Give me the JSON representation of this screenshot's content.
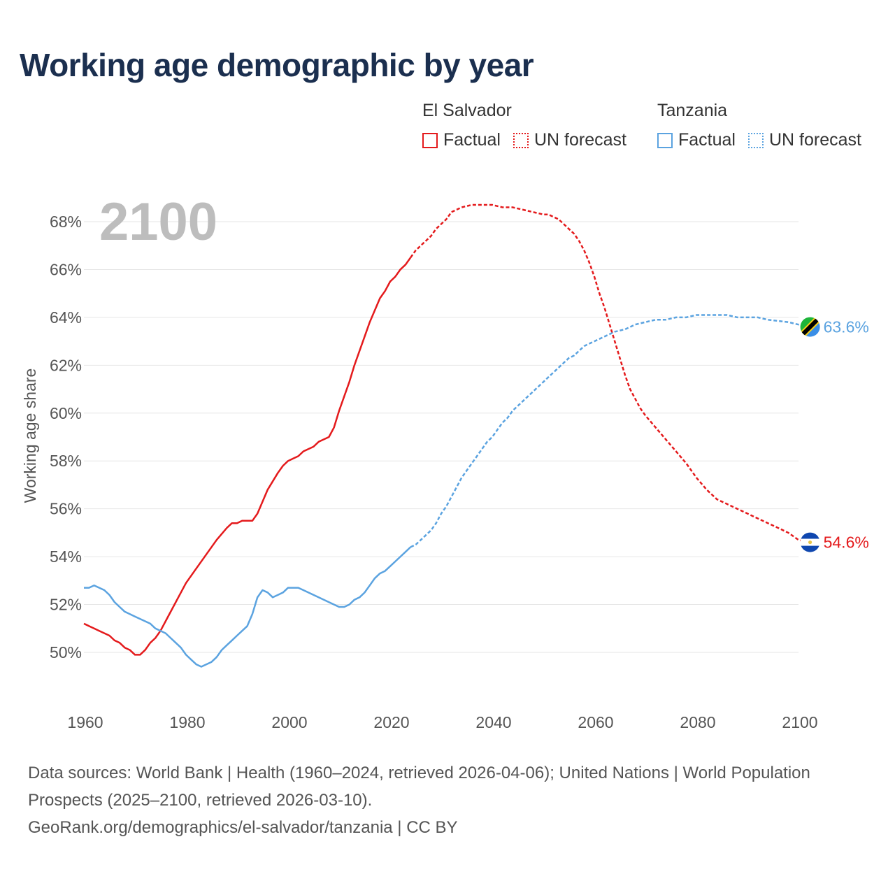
{
  "title": "Working age demographic by year",
  "legend": {
    "groups": [
      {
        "name": "El Salvador",
        "color": "#e41a1c",
        "factual_label": "Factual",
        "forecast_label": "UN forecast"
      },
      {
        "name": "Tanzania",
        "color": "#5ba3e0",
        "factual_label": "Factual",
        "forecast_label": "UN forecast"
      }
    ]
  },
  "year_label": "2100",
  "source": {
    "line1": "Data sources: World Bank | Health (1960–2024, retrieved 2026-04-06); United Nations | World Population Prospects (2025–2100, retrieved 2026-03-10).",
    "line2": "GeoRank.org/demographics/el-salvador/tanzania | CC BY"
  },
  "chart_data": {
    "type": "line",
    "title": "Working age demographic by year",
    "xlabel": "",
    "ylabel": "Working age share",
    "xlim": [
      1960,
      2100
    ],
    "ylim": [
      48,
      69.5
    ],
    "x_ticks": [
      1960,
      1980,
      2000,
      2020,
      2040,
      2060,
      2080,
      2100
    ],
    "x_tick_labels": [
      "1960",
      "1980",
      "2000",
      "2020",
      "2040",
      "2060",
      "2080",
      "2100"
    ],
    "y_ticks": [
      50,
      52,
      54,
      56,
      58,
      60,
      62,
      64,
      66,
      68
    ],
    "y_tick_labels": [
      "50%",
      "52%",
      "54%",
      "56%",
      "58%",
      "60%",
      "62%",
      "64%",
      "66%",
      "68%"
    ],
    "factual_end_year": 2024,
    "series": [
      {
        "name": "El Salvador",
        "color": "#e41a1c",
        "end_label": "54.6%",
        "points": [
          [
            1960,
            51.2
          ],
          [
            1962,
            51.0
          ],
          [
            1963,
            50.9
          ],
          [
            1965,
            50.7
          ],
          [
            1966,
            50.5
          ],
          [
            1967,
            50.4
          ],
          [
            1968,
            50.2
          ],
          [
            1969,
            50.1
          ],
          [
            1970,
            49.9
          ],
          [
            1971,
            49.9
          ],
          [
            1972,
            50.1
          ],
          [
            1973,
            50.4
          ],
          [
            1974,
            50.6
          ],
          [
            1975,
            50.9
          ],
          [
            1976,
            51.3
          ],
          [
            1978,
            52.1
          ],
          [
            1980,
            52.9
          ],
          [
            1982,
            53.5
          ],
          [
            1984,
            54.1
          ],
          [
            1986,
            54.7
          ],
          [
            1988,
            55.2
          ],
          [
            1989,
            55.4
          ],
          [
            1990,
            55.4
          ],
          [
            1991,
            55.5
          ],
          [
            1993,
            55.5
          ],
          [
            1994,
            55.8
          ],
          [
            1995,
            56.3
          ],
          [
            1996,
            56.8
          ],
          [
            1998,
            57.5
          ],
          [
            1999,
            57.8
          ],
          [
            2000,
            58.0
          ],
          [
            2001,
            58.1
          ],
          [
            2002,
            58.2
          ],
          [
            2003,
            58.4
          ],
          [
            2005,
            58.6
          ],
          [
            2006,
            58.8
          ],
          [
            2008,
            59.0
          ],
          [
            2009,
            59.4
          ],
          [
            2010,
            60.1
          ],
          [
            2011,
            60.7
          ],
          [
            2012,
            61.3
          ],
          [
            2013,
            62.0
          ],
          [
            2014,
            62.6
          ],
          [
            2015,
            63.2
          ],
          [
            2016,
            63.8
          ],
          [
            2017,
            64.3
          ],
          [
            2018,
            64.8
          ],
          [
            2019,
            65.1
          ],
          [
            2020,
            65.5
          ],
          [
            2021,
            65.7
          ],
          [
            2022,
            66.0
          ],
          [
            2023,
            66.2
          ],
          [
            2024,
            66.5
          ],
          [
            2025,
            66.8
          ],
          [
            2026,
            67.0
          ],
          [
            2027,
            67.2
          ],
          [
            2028,
            67.4
          ],
          [
            2029,
            67.7
          ],
          [
            2030,
            67.9
          ],
          [
            2031,
            68.1
          ],
          [
            2032,
            68.4
          ],
          [
            2034,
            68.6
          ],
          [
            2036,
            68.7
          ],
          [
            2040,
            68.7
          ],
          [
            2042,
            68.6
          ],
          [
            2044,
            68.6
          ],
          [
            2046,
            68.5
          ],
          [
            2048,
            68.4
          ],
          [
            2050,
            68.3
          ],
          [
            2051,
            68.3
          ],
          [
            2052,
            68.2
          ],
          [
            2053,
            68.1
          ],
          [
            2054,
            67.9
          ],
          [
            2055,
            67.7
          ],
          [
            2056,
            67.5
          ],
          [
            2057,
            67.2
          ],
          [
            2058,
            66.8
          ],
          [
            2059,
            66.3
          ],
          [
            2060,
            65.7
          ],
          [
            2061,
            65.0
          ],
          [
            2062,
            64.4
          ],
          [
            2063,
            63.7
          ],
          [
            2064,
            63.0
          ],
          [
            2065,
            62.3
          ],
          [
            2066,
            61.6
          ],
          [
            2067,
            61.0
          ],
          [
            2068,
            60.6
          ],
          [
            2069,
            60.2
          ],
          [
            2070,
            59.9
          ],
          [
            2072,
            59.4
          ],
          [
            2074,
            58.9
          ],
          [
            2076,
            58.4
          ],
          [
            2078,
            57.9
          ],
          [
            2080,
            57.3
          ],
          [
            2082,
            56.8
          ],
          [
            2084,
            56.4
          ],
          [
            2086,
            56.2
          ],
          [
            2088,
            56.0
          ],
          [
            2090,
            55.8
          ],
          [
            2092,
            55.6
          ],
          [
            2094,
            55.4
          ],
          [
            2096,
            55.2
          ],
          [
            2098,
            55.0
          ],
          [
            2100,
            54.7
          ],
          [
            2102,
            54.6
          ]
        ]
      },
      {
        "name": "Tanzania",
        "color": "#5ba3e0",
        "end_label": "63.6%",
        "points": [
          [
            1960,
            52.7
          ],
          [
            1961,
            52.7
          ],
          [
            1962,
            52.8
          ],
          [
            1963,
            52.7
          ],
          [
            1964,
            52.6
          ],
          [
            1965,
            52.4
          ],
          [
            1966,
            52.1
          ],
          [
            1967,
            51.9
          ],
          [
            1968,
            51.7
          ],
          [
            1970,
            51.5
          ],
          [
            1972,
            51.3
          ],
          [
            1973,
            51.2
          ],
          [
            1974,
            51.0
          ],
          [
            1976,
            50.8
          ],
          [
            1977,
            50.6
          ],
          [
            1978,
            50.4
          ],
          [
            1979,
            50.2
          ],
          [
            1980,
            49.9
          ],
          [
            1981,
            49.7
          ],
          [
            1982,
            49.5
          ],
          [
            1983,
            49.4
          ],
          [
            1984,
            49.5
          ],
          [
            1985,
            49.6
          ],
          [
            1986,
            49.8
          ],
          [
            1987,
            50.1
          ],
          [
            1988,
            50.3
          ],
          [
            1989,
            50.5
          ],
          [
            1990,
            50.7
          ],
          [
            1991,
            50.9
          ],
          [
            1992,
            51.1
          ],
          [
            1993,
            51.6
          ],
          [
            1994,
            52.3
          ],
          [
            1995,
            52.6
          ],
          [
            1996,
            52.5
          ],
          [
            1997,
            52.3
          ],
          [
            1998,
            52.4
          ],
          [
            1999,
            52.5
          ],
          [
            2000,
            52.7
          ],
          [
            2002,
            52.7
          ],
          [
            2003,
            52.6
          ],
          [
            2005,
            52.4
          ],
          [
            2007,
            52.2
          ],
          [
            2009,
            52.0
          ],
          [
            2010,
            51.9
          ],
          [
            2011,
            51.9
          ],
          [
            2012,
            52.0
          ],
          [
            2013,
            52.2
          ],
          [
            2014,
            52.3
          ],
          [
            2015,
            52.5
          ],
          [
            2016,
            52.8
          ],
          [
            2017,
            53.1
          ],
          [
            2018,
            53.3
          ],
          [
            2019,
            53.4
          ],
          [
            2020,
            53.6
          ],
          [
            2021,
            53.8
          ],
          [
            2022,
            54.0
          ],
          [
            2023,
            54.2
          ],
          [
            2024,
            54.4
          ],
          [
            2025,
            54.5
          ],
          [
            2026,
            54.7
          ],
          [
            2027,
            54.9
          ],
          [
            2028,
            55.1
          ],
          [
            2029,
            55.4
          ],
          [
            2030,
            55.8
          ],
          [
            2031,
            56.1
          ],
          [
            2032,
            56.5
          ],
          [
            2033,
            56.9
          ],
          [
            2034,
            57.3
          ],
          [
            2035,
            57.6
          ],
          [
            2036,
            57.9
          ],
          [
            2037,
            58.2
          ],
          [
            2038,
            58.5
          ],
          [
            2039,
            58.8
          ],
          [
            2040,
            59.0
          ],
          [
            2041,
            59.3
          ],
          [
            2042,
            59.6
          ],
          [
            2043,
            59.8
          ],
          [
            2044,
            60.1
          ],
          [
            2045,
            60.3
          ],
          [
            2046,
            60.5
          ],
          [
            2047,
            60.7
          ],
          [
            2048,
            60.9
          ],
          [
            2049,
            61.1
          ],
          [
            2050,
            61.3
          ],
          [
            2051,
            61.5
          ],
          [
            2052,
            61.7
          ],
          [
            2053,
            61.9
          ],
          [
            2054,
            62.1
          ],
          [
            2055,
            62.3
          ],
          [
            2056,
            62.4
          ],
          [
            2057,
            62.6
          ],
          [
            2058,
            62.8
          ],
          [
            2059,
            62.9
          ],
          [
            2060,
            63.0
          ],
          [
            2062,
            63.2
          ],
          [
            2064,
            63.4
          ],
          [
            2066,
            63.5
          ],
          [
            2068,
            63.7
          ],
          [
            2070,
            63.8
          ],
          [
            2072,
            63.9
          ],
          [
            2074,
            63.9
          ],
          [
            2076,
            64.0
          ],
          [
            2078,
            64.0
          ],
          [
            2080,
            64.1
          ],
          [
            2082,
            64.1
          ],
          [
            2086,
            64.1
          ],
          [
            2088,
            64.0
          ],
          [
            2092,
            64.0
          ],
          [
            2094,
            63.9
          ],
          [
            2098,
            63.8
          ],
          [
            2100,
            63.7
          ],
          [
            2102,
            63.6
          ]
        ]
      }
    ]
  }
}
